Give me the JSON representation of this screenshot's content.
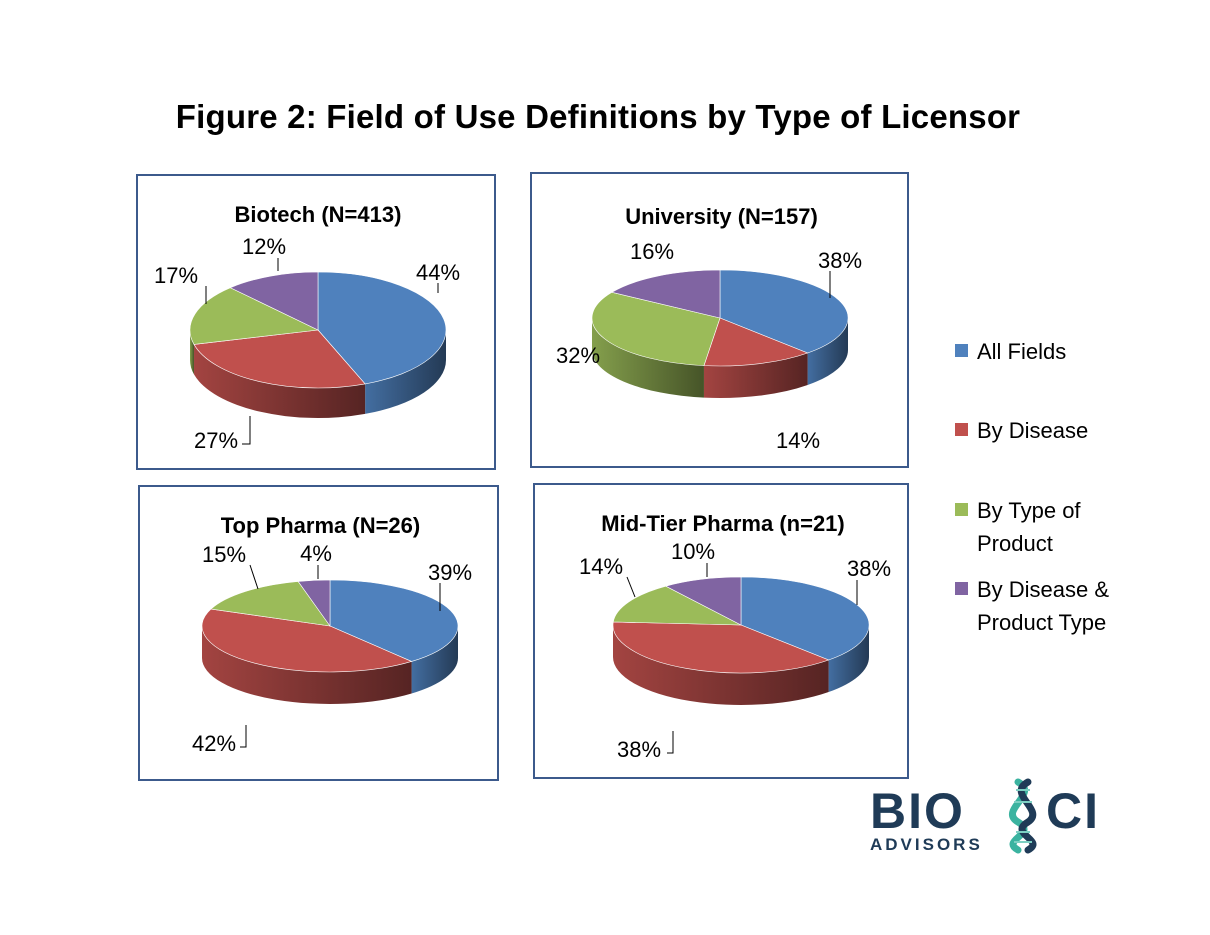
{
  "figure_title": "Figure 2:  Field of Use Definitions by Type of Licensor",
  "legend": [
    {
      "label": "All Fields",
      "color": "#4f81bd"
    },
    {
      "label": "By Disease",
      "color": "#c0504d"
    },
    {
      "label": "By Type of Product",
      "color": "#9bbb59"
    },
    {
      "label": "By Disease & Product Type",
      "color": "#8064a2"
    }
  ],
  "logo": {
    "brand_left": "BIO",
    "brand_right": "CI",
    "tagline": "ADVISORS"
  },
  "chart_data": [
    {
      "type": "pie",
      "title": "Biotech (N=413)",
      "categories": [
        "All Fields",
        "By Disease",
        "By Type of Product",
        "By Disease & Product Type"
      ],
      "values": [
        44,
        27,
        17,
        12
      ],
      "labels": [
        "44%",
        "27%",
        "17%",
        "12%"
      ]
    },
    {
      "type": "pie",
      "title": "University (N=157)",
      "categories": [
        "All Fields",
        "By Disease",
        "By Type of Product",
        "By Disease & Product Type"
      ],
      "values": [
        38,
        14,
        32,
        16
      ],
      "labels": [
        "38%",
        "14%",
        "32%",
        "16%"
      ]
    },
    {
      "type": "pie",
      "title": "Top Pharma (N=26)",
      "categories": [
        "All Fields",
        "By Disease",
        "By Type of Product",
        "By Disease & Product Type"
      ],
      "values": [
        39,
        42,
        15,
        4
      ],
      "labels": [
        "39%",
        "42%",
        "15%",
        "4%"
      ]
    },
    {
      "type": "pie",
      "title": "Mid-Tier Pharma (n=21)",
      "categories": [
        "All Fields",
        "By Disease",
        "By Type of Product",
        "By Disease & Product Type"
      ],
      "values": [
        38,
        38,
        14,
        10
      ],
      "labels": [
        "38%",
        "38%",
        "14%",
        "10%"
      ]
    }
  ]
}
